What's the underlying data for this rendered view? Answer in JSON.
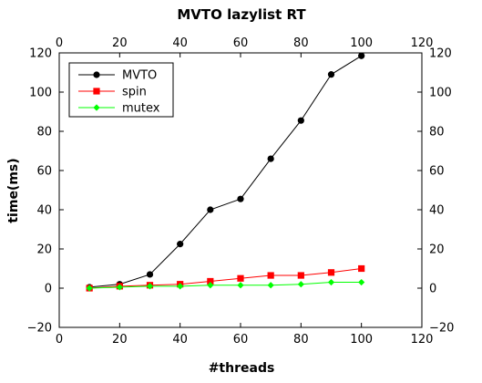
{
  "chart_data": {
    "type": "line",
    "title": "MVTO lazylist RT",
    "xlabel": "#threads",
    "ylabel": "time(ms)",
    "xlim": [
      0,
      120
    ],
    "ylim": [
      -20,
      120
    ],
    "xticks": [
      "0",
      "20",
      "40",
      "60",
      "80",
      "100",
      "120"
    ],
    "yticks": [
      "−20",
      "0",
      "20",
      "40",
      "60",
      "80",
      "100",
      "120"
    ],
    "x": [
      10,
      20,
      30,
      40,
      50,
      60,
      70,
      80,
      90,
      100
    ],
    "grid": false,
    "legend_position": "top-left",
    "series": [
      {
        "name": "MVTO",
        "color": "#000000",
        "marker": "circle",
        "values": [
          0.5,
          2,
          7,
          22.5,
          40,
          45.5,
          66,
          85.5,
          109,
          118.5
        ]
      },
      {
        "name": "spin",
        "color": "#ff0000",
        "marker": "square",
        "values": [
          0,
          1,
          1.5,
          2,
          3.5,
          5,
          6.5,
          6.5,
          8,
          10
        ]
      },
      {
        "name": "mutex",
        "color": "#00ff00",
        "marker": "diamond",
        "values": [
          0,
          0.5,
          1,
          1,
          1.5,
          1.5,
          1.5,
          2,
          3,
          3
        ]
      }
    ]
  }
}
